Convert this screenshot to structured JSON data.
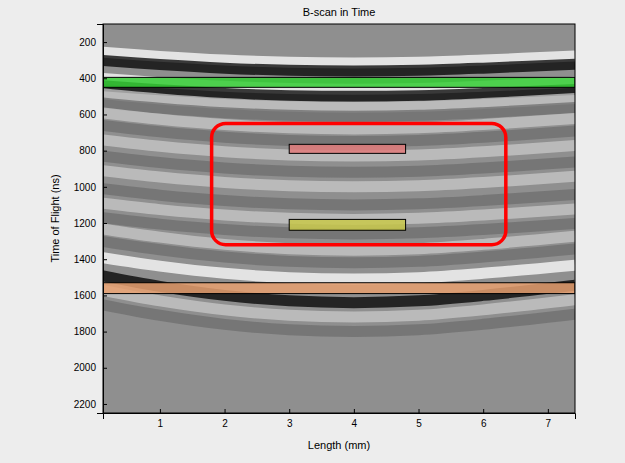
{
  "chart_data": {
    "type": "line",
    "title": "B-scan in Time",
    "x_label": "Length (mm)",
    "y_label": "Time of Flight (ns)",
    "xlim": [
      0.12,
      7.42
    ],
    "ylim": [
      2250,
      100
    ],
    "xticks": [
      1,
      2,
      3,
      4,
      5,
      6,
      7
    ],
    "yticks": [
      200,
      400,
      600,
      800,
      1000,
      1200,
      1400,
      1600,
      1800,
      2000,
      2200
    ],
    "grid": false,
    "x": [
      0.12,
      1,
      2,
      3,
      4,
      5,
      6,
      7.42
    ],
    "series": [
      {
        "color": "#ffffff",
        "values": [
          256,
          279,
          299,
          311,
          315,
          311,
          299,
          277
        ]
      },
      {
        "color": "#000000",
        "values": [
          301,
          324,
          344,
          356,
          360,
          356,
          344,
          322
        ]
      },
      {
        "color": "#ffffff",
        "values": [
          401,
          424,
          444,
          456,
          460,
          456,
          444,
          422
        ]
      },
      {
        "color": "#000000",
        "values": [
          441,
          464,
          484,
          496,
          500,
          496,
          484,
          462
        ]
      },
      {
        "color": "#c8c8c8",
        "values": [
          486,
          515,
          540,
          555,
          560,
          555,
          540,
          512
        ]
      },
      {
        "color": "#6e6e6e",
        "values": [
          536,
          565,
          590,
          605,
          610,
          605,
          590,
          562
        ]
      },
      {
        "color": "#c8c8c8",
        "values": [
          591,
          626,
          656,
          674,
          680,
          674,
          656,
          622
        ]
      },
      {
        "color": "#6e6e6e",
        "values": [
          661,
          696,
          726,
          744,
          750,
          744,
          726,
          692
        ]
      },
      {
        "color": "#c8c8c8",
        "values": [
          741,
          776,
          806,
          824,
          830,
          824,
          806,
          772
        ]
      },
      {
        "color": "#6e6e6e",
        "values": [
          831,
          866,
          896,
          914,
          920,
          914,
          896,
          862
        ]
      },
      {
        "color": "#c8c8c8",
        "values": [
          911,
          946,
          976,
          994,
          1000,
          994,
          976,
          942
        ]
      },
      {
        "color": "#6e6e6e",
        "values": [
          1011,
          1046,
          1076,
          1094,
          1100,
          1094,
          1076,
          1042
        ]
      },
      {
        "color": "#c8c8c8",
        "values": [
          1091,
          1126,
          1156,
          1174,
          1180,
          1174,
          1156,
          1122
        ]
      },
      {
        "color": "#6e6e6e",
        "values": [
          1171,
          1206,
          1236,
          1254,
          1260,
          1254,
          1236,
          1202
        ]
      },
      {
        "color": "#c8c8c8",
        "values": [
          1232,
          1278,
          1318,
          1342,
          1350,
          1342,
          1318,
          1273
        ]
      },
      {
        "color": "#6e6e6e",
        "values": [
          1302,
          1348,
          1388,
          1412,
          1420,
          1412,
          1388,
          1343
        ]
      },
      {
        "color": "#ffffff",
        "values": [
          1392,
          1438,
          1478,
          1502,
          1510,
          1502,
          1478,
          1433
        ]
      },
      {
        "color": "#000000",
        "values": [
          1492,
          1550,
          1600,
          1630,
          1640,
          1630,
          1600,
          1544
        ]
      },
      {
        "color": "#c8c8c8",
        "values": [
          1572,
          1630,
          1680,
          1710,
          1720,
          1710,
          1680,
          1624
        ]
      },
      {
        "color": "#6e6e6e",
        "values": [
          1652,
          1710,
          1760,
          1790,
          1800,
          1790,
          1760,
          1704
        ]
      }
    ],
    "regions": [
      {
        "color": "#33cc33",
        "x": [
          0.12,
          7.42
        ],
        "y": [
          395,
          450
        ]
      },
      {
        "color": "#e07a7a",
        "x": [
          3.0,
          4.8
        ],
        "y": [
          765,
          815
        ]
      },
      {
        "color": "#c8c84a",
        "x": [
          3.0,
          4.8
        ],
        "y": [
          1180,
          1240
        ]
      },
      {
        "color": "#e8a070",
        "x": [
          0.12,
          7.42
        ],
        "y": [
          1530,
          1590
        ]
      }
    ],
    "outline": {
      "color": "#ff0000",
      "x": [
        1.8,
        6.35
      ],
      "y": [
        650,
        1320
      ]
    }
  }
}
